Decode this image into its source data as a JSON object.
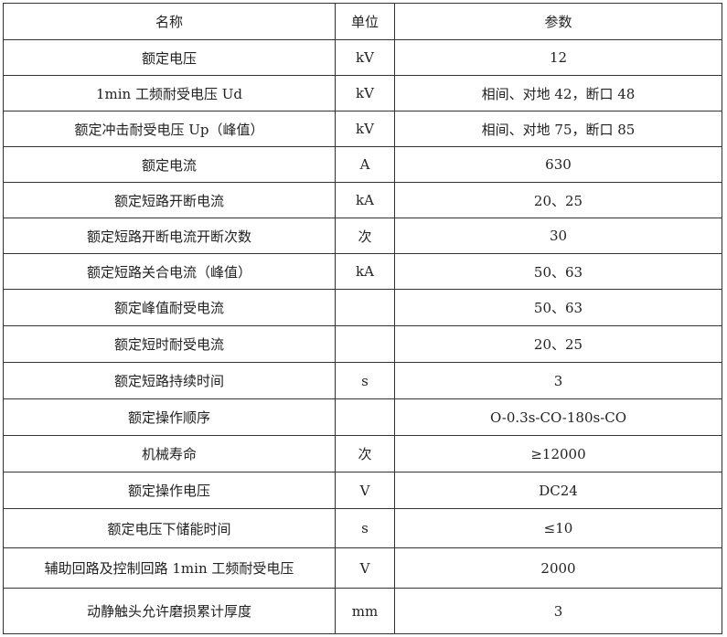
{
  "header": [
    "名称",
    "单位",
    "参数"
  ],
  "rows": [
    [
      "额定电压",
      "kV",
      "12"
    ],
    [
      "1min 工频耐受电压 Ud",
      "kV",
      "相间、对地 42，断口 48"
    ],
    [
      "额定冲击耐受电压 Up（峰值）",
      "kV",
      "相间、对地 75，断口 85"
    ],
    [
      "额定电流",
      "A",
      "630"
    ],
    [
      "额定短路开断电流",
      "kA",
      "20、25"
    ],
    [
      "额定短路开断电流开断次数",
      "次",
      "30"
    ],
    [
      "额定短路关合电流（峰值）",
      "kA",
      "50、63"
    ],
    [
      "额定峰值耐受电流",
      "",
      "50、63"
    ],
    [
      "额定短时耐受电流",
      "",
      "20、25"
    ],
    [
      "额定短路持续时间",
      "s",
      "3"
    ],
    [
      "额定操作顺序",
      "",
      "O-0.3s-CO-180s-CO"
    ],
    [
      "机械寿命",
      "次",
      "≥12000"
    ],
    [
      "额定操作电压",
      "V",
      "DC24"
    ],
    [
      "额定电压下储能时间",
      "s",
      "≤10"
    ],
    [
      "辅助回路及控制回路 1min 工频耐受电压",
      "V",
      "2000"
    ],
    [
      "动静触头允许磨损累计厚度",
      "mm",
      "3"
    ]
  ]
}
